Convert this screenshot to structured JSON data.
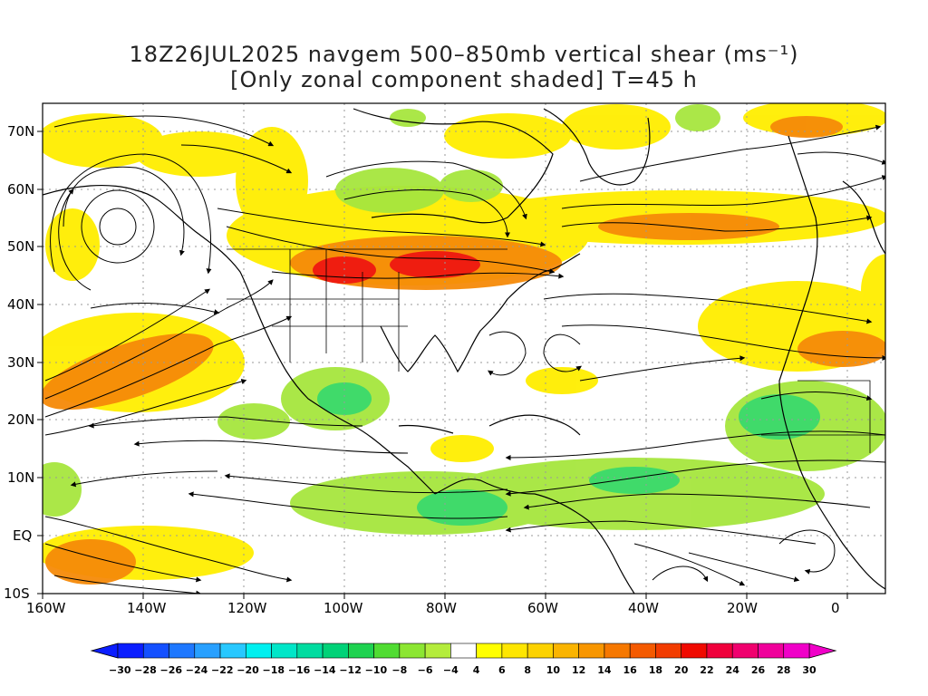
{
  "title": {
    "line1": "18Z26JUL2025 navgem 500–850mb vertical shear (ms⁻¹)",
    "line2": "[Only zonal component shaded] T=45 h"
  },
  "axes": {
    "lat_labels": [
      "70N",
      "60N",
      "50N",
      "40N",
      "30N",
      "20N",
      "10N",
      "EQ",
      "10S"
    ],
    "lon_labels": [
      "160W",
      "140W",
      "120W",
      "100W",
      "80W",
      "60W",
      "40W",
      "20W",
      "0"
    ]
  },
  "colorbar": {
    "labels": [
      "−30",
      "−28",
      "−26",
      "−24",
      "−22",
      "−20",
      "−18",
      "−16",
      "−14",
      "−12",
      "−10",
      "−8",
      "−6",
      "−4",
      "4",
      "6",
      "8",
      "10",
      "12",
      "14",
      "16",
      "18",
      "20",
      "22",
      "24",
      "26",
      "28",
      "30"
    ],
    "colors": [
      "#0b1eff",
      "#1450ff",
      "#1e78ff",
      "#28a0ff",
      "#28c8ff",
      "#00f0f0",
      "#00e6c8",
      "#00dca0",
      "#00d278",
      "#1ed250",
      "#50dc32",
      "#8ce632",
      "#b4ec3c",
      "#ffffff",
      "#ffff00",
      "#fee600",
      "#fcd200",
      "#fab400",
      "#f89600",
      "#f67800",
      "#f45a00",
      "#f23c00",
      "#f00a00",
      "#f0003c",
      "#f0006e",
      "#f0009b",
      "#f000c8"
    ]
  },
  "colors": {
    "positive_strong": "#ef1d10",
    "positive_moderate": "#f68a08",
    "positive_weak": "#ffee00",
    "negative_weak": "#a6e63e",
    "negative_moderate": "#34d86e",
    "coast": "#000000"
  }
}
